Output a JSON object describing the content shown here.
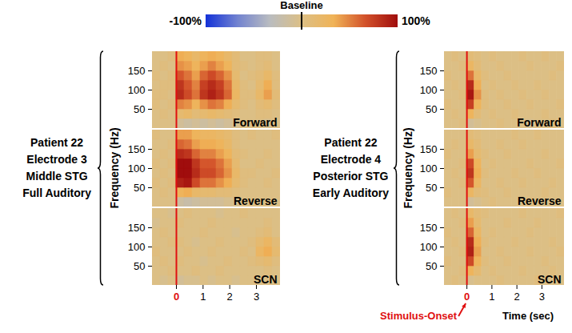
{
  "chart_data": {
    "type": "heatmap",
    "x_label": "Time (sec)",
    "y_label": "Frequency (Hz)",
    "xlim": [
      -0.9,
      3.9
    ],
    "ylim": [
      0,
      200
    ],
    "xticks": [
      0,
      1,
      2,
      3
    ],
    "yticks": [
      50,
      100,
      150
    ],
    "time_bins": [
      -0.9,
      -0.6,
      -0.3,
      0,
      0.3,
      0.6,
      0.9,
      1.2,
      1.5,
      1.8,
      2.1,
      2.4,
      2.7,
      3,
      3.3,
      3.6,
      3.9
    ],
    "freq_bins": [
      0,
      25,
      50,
      75,
      100,
      125,
      150,
      175,
      200
    ],
    "stimulus_onset": {
      "time": 0,
      "label": "Stimulus-Onset",
      "color": "#e01010"
    },
    "colorbar": {
      "title": "Baseline",
      "baseline": 0,
      "range": [
        -100,
        100
      ],
      "ticks": [
        {
          "value": -100,
          "label": "-100%"
        },
        {
          "value": 100,
          "label": "100%"
        }
      ],
      "colors": [
        "#1432d8",
        "#7283d0",
        "#b9bcc0",
        "#dcbf85",
        "#f0b357",
        "#d2512a",
        "#a00d0d"
      ]
    },
    "groups": [
      {
        "label": [
          "Patient 22",
          "Electrode 3",
          "Middle STG",
          "Full Auditory"
        ],
        "panels": [
          {
            "title": "Forward",
            "cells": [
              [
                0,
                0,
                0,
                -10,
                -15,
                -10,
                -15,
                -10,
                -15,
                -10,
                -5,
                0,
                0,
                0,
                -5,
                0
              ],
              [
                0,
                5,
                0,
                15,
                20,
                10,
                15,
                20,
                15,
                10,
                5,
                0,
                0,
                5,
                5,
                0
              ],
              [
                5,
                0,
                5,
                50,
                45,
                30,
                45,
                55,
                50,
                35,
                15,
                5,
                0,
                10,
                15,
                5
              ],
              [
                5,
                5,
                0,
                85,
                70,
                55,
                80,
                90,
                80,
                60,
                25,
                5,
                5,
                20,
                40,
                10
              ],
              [
                0,
                5,
                5,
                80,
                65,
                50,
                75,
                85,
                75,
                55,
                20,
                5,
                0,
                15,
                35,
                5
              ],
              [
                5,
                0,
                5,
                65,
                55,
                40,
                60,
                70,
                60,
                45,
                15,
                0,
                5,
                10,
                20,
                5
              ],
              [
                0,
                5,
                0,
                45,
                40,
                30,
                40,
                50,
                40,
                30,
                10,
                5,
                0,
                5,
                10,
                0
              ],
              [
                0,
                0,
                5,
                35,
                30,
                20,
                30,
                35,
                30,
                20,
                10,
                0,
                0,
                5,
                5,
                0
              ]
            ]
          },
          {
            "title": "Reverse",
            "cells": [
              [
                0,
                0,
                0,
                -15,
                -20,
                -15,
                -10,
                -10,
                -10,
                -5,
                -5,
                0,
                0,
                0,
                0,
                0
              ],
              [
                0,
                5,
                0,
                30,
                35,
                20,
                15,
                15,
                10,
                10,
                5,
                0,
                0,
                0,
                0,
                0
              ],
              [
                5,
                0,
                5,
                90,
                95,
                70,
                55,
                55,
                45,
                35,
                15,
                5,
                0,
                0,
                5,
                0
              ],
              [
                0,
                5,
                0,
                100,
                100,
                85,
                70,
                70,
                60,
                45,
                20,
                5,
                5,
                0,
                0,
                5
              ],
              [
                5,
                0,
                5,
                100,
                100,
                80,
                65,
                65,
                55,
                40,
                15,
                0,
                0,
                5,
                0,
                0
              ],
              [
                0,
                5,
                0,
                85,
                80,
                60,
                50,
                50,
                40,
                30,
                10,
                5,
                0,
                0,
                5,
                0
              ],
              [
                0,
                0,
                5,
                60,
                55,
                40,
                35,
                35,
                30,
                20,
                5,
                0,
                0,
                0,
                0,
                0
              ],
              [
                5,
                0,
                0,
                40,
                40,
                30,
                25,
                25,
                20,
                15,
                5,
                0,
                5,
                0,
                0,
                5
              ]
            ]
          },
          {
            "title": "SCN",
            "cells": [
              [
                0,
                -5,
                0,
                -10,
                -5,
                -5,
                0,
                -5,
                0,
                0,
                -5,
                0,
                0,
                0,
                0,
                0
              ],
              [
                0,
                0,
                5,
                0,
                0,
                5,
                0,
                0,
                5,
                0,
                0,
                0,
                0,
                0,
                5,
                0
              ],
              [
                0,
                5,
                0,
                5,
                0,
                0,
                -5,
                0,
                0,
                5,
                0,
                0,
                5,
                10,
                15,
                5
              ],
              [
                5,
                0,
                0,
                0,
                5,
                0,
                0,
                5,
                0,
                0,
                0,
                5,
                0,
                25,
                35,
                15
              ],
              [
                0,
                0,
                5,
                5,
                0,
                -5,
                0,
                0,
                5,
                0,
                0,
                0,
                5,
                15,
                25,
                10
              ],
              [
                0,
                5,
                0,
                0,
                0,
                0,
                5,
                0,
                0,
                0,
                -5,
                0,
                0,
                5,
                10,
                0
              ],
              [
                -5,
                0,
                0,
                5,
                0,
                0,
                0,
                5,
                0,
                0,
                0,
                0,
                0,
                0,
                5,
                0
              ],
              [
                0,
                0,
                -5,
                0,
                5,
                0,
                0,
                0,
                -5,
                0,
                0,
                5,
                0,
                0,
                0,
                0
              ]
            ]
          }
        ]
      },
      {
        "label": [
          "Patient 22",
          "Electrode 4",
          "Posterior STG",
          "Early Auditory"
        ],
        "panels": [
          {
            "title": "Forward",
            "cells": [
              [
                0,
                0,
                5,
                -10,
                -5,
                0,
                0,
                5,
                0,
                0,
                0,
                -5,
                0,
                0,
                5,
                0
              ],
              [
                0,
                5,
                0,
                30,
                10,
                0,
                5,
                0,
                0,
                5,
                0,
                0,
                0,
                5,
                0,
                0
              ],
              [
                5,
                0,
                0,
                75,
                30,
                5,
                0,
                0,
                5,
                0,
                0,
                5,
                0,
                0,
                0,
                5
              ],
              [
                0,
                0,
                5,
                95,
                45,
                5,
                0,
                5,
                0,
                0,
                5,
                0,
                0,
                5,
                0,
                0
              ],
              [
                0,
                5,
                0,
                85,
                35,
                0,
                5,
                0,
                0,
                5,
                0,
                0,
                5,
                0,
                0,
                0
              ],
              [
                5,
                0,
                0,
                55,
                20,
                5,
                0,
                0,
                5,
                0,
                0,
                0,
                0,
                0,
                5,
                0
              ],
              [
                0,
                0,
                5,
                25,
                10,
                0,
                0,
                5,
                0,
                0,
                0,
                5,
                0,
                0,
                0,
                5
              ],
              [
                0,
                5,
                0,
                10,
                5,
                0,
                5,
                0,
                0,
                0,
                5,
                0,
                0,
                5,
                0,
                0
              ]
            ]
          },
          {
            "title": "Reverse",
            "cells": [
              [
                0,
                0,
                0,
                -10,
                -5,
                0,
                5,
                0,
                0,
                0,
                0,
                5,
                0,
                0,
                0,
                0
              ],
              [
                5,
                0,
                0,
                25,
                10,
                5,
                0,
                0,
                5,
                0,
                0,
                0,
                0,
                5,
                0,
                0
              ],
              [
                0,
                0,
                5,
                65,
                25,
                0,
                0,
                5,
                0,
                0,
                5,
                0,
                0,
                0,
                5,
                0
              ],
              [
                0,
                5,
                0,
                80,
                35,
                5,
                0,
                0,
                0,
                5,
                0,
                0,
                5,
                0,
                0,
                0
              ],
              [
                0,
                0,
                5,
                70,
                30,
                0,
                5,
                0,
                0,
                0,
                0,
                5,
                0,
                0,
                0,
                5
              ],
              [
                5,
                0,
                0,
                40,
                15,
                5,
                0,
                0,
                5,
                0,
                0,
                0,
                0,
                5,
                0,
                0
              ],
              [
                0,
                5,
                0,
                20,
                10,
                0,
                0,
                5,
                0,
                0,
                5,
                0,
                0,
                0,
                0,
                0
              ],
              [
                0,
                0,
                0,
                10,
                5,
                0,
                0,
                0,
                0,
                5,
                0,
                0,
                5,
                0,
                0,
                0
              ]
            ]
          },
          {
            "title": "SCN",
            "cells": [
              [
                0,
                5,
                0,
                -5,
                0,
                0,
                0,
                5,
                0,
                0,
                0,
                0,
                5,
                0,
                0,
                0
              ],
              [
                0,
                0,
                5,
                30,
                15,
                0,
                5,
                0,
                0,
                0,
                5,
                0,
                0,
                0,
                5,
                0
              ],
              [
                5,
                0,
                0,
                70,
                30,
                5,
                0,
                0,
                5,
                0,
                0,
                0,
                0,
                5,
                0,
                0
              ],
              [
                0,
                0,
                5,
                90,
                40,
                0,
                0,
                5,
                0,
                0,
                0,
                5,
                0,
                0,
                0,
                5
              ],
              [
                0,
                5,
                0,
                85,
                35,
                5,
                0,
                0,
                0,
                5,
                0,
                0,
                0,
                0,
                5,
                0
              ],
              [
                5,
                0,
                0,
                60,
                25,
                0,
                5,
                0,
                0,
                0,
                0,
                5,
                0,
                0,
                0,
                0
              ],
              [
                0,
                0,
                5,
                40,
                15,
                0,
                0,
                0,
                5,
                0,
                0,
                0,
                5,
                0,
                0,
                0
              ],
              [
                0,
                5,
                0,
                20,
                10,
                5,
                0,
                0,
                0,
                0,
                5,
                0,
                0,
                0,
                0,
                5
              ]
            ]
          }
        ]
      }
    ]
  }
}
